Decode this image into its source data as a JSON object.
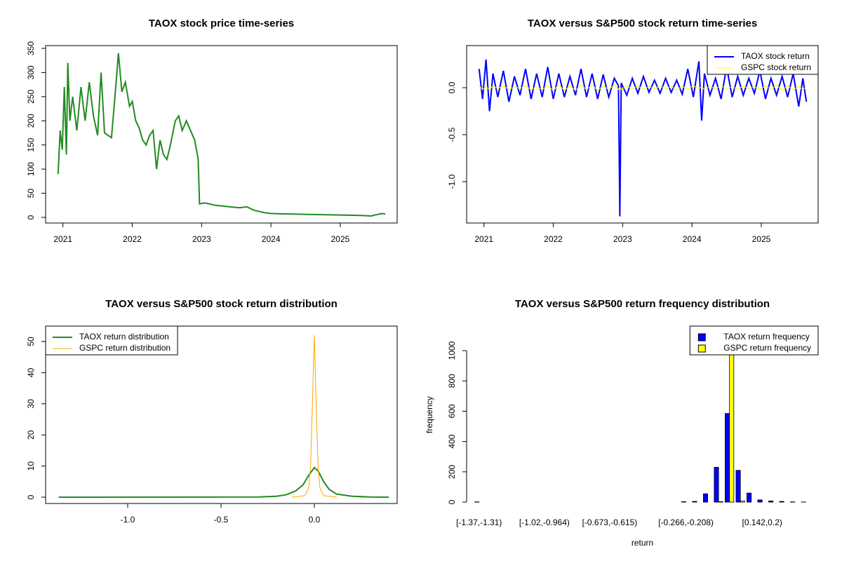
{
  "chart_data": [
    {
      "type": "line",
      "title": "TAOX stock price time-series",
      "x": [
        2020.93,
        2020.96,
        2020.99,
        2021.02,
        2021.05,
        2021.07,
        2021.1,
        2021.14,
        2021.2,
        2021.26,
        2021.32,
        2021.38,
        2021.44,
        2021.5,
        2021.55,
        2021.6,
        2021.7,
        2021.75,
        2021.8,
        2021.85,
        2021.9,
        2021.96,
        2022.0,
        2022.05,
        2022.1,
        2022.15,
        2022.2,
        2022.25,
        2022.3,
        2022.35,
        2022.4,
        2022.45,
        2022.5,
        2022.55,
        2022.62,
        2022.67,
        2022.72,
        2022.78,
        2022.84,
        2022.9,
        2022.95,
        2022.97,
        2023.05,
        2023.2,
        2023.4,
        2023.55,
        2023.65,
        2023.75,
        2023.9,
        2024.0,
        2024.3,
        2024.6,
        2025.0,
        2025.3,
        2025.45,
        2025.5,
        2025.6,
        2025.65
      ],
      "series": [
        {
          "name": "TAOX",
          "color": "#228b22",
          "values": [
            90,
            180,
            140,
            270,
            130,
            320,
            200,
            250,
            180,
            270,
            200,
            280,
            210,
            170,
            300,
            175,
            165,
            250,
            340,
            260,
            280,
            230,
            240,
            200,
            185,
            160,
            150,
            170,
            180,
            100,
            160,
            130,
            120,
            150,
            200,
            210,
            180,
            200,
            180,
            160,
            120,
            28,
            30,
            25,
            22,
            20,
            22,
            15,
            10,
            8,
            7,
            6,
            5,
            4,
            3,
            5,
            8,
            7
          ]
        }
      ],
      "xlim": [
        2020.75,
        2025.82
      ],
      "xticks": [
        2021,
        2022,
        2023,
        2024,
        2025
      ],
      "ylim": [
        -11.6,
        355.8
      ],
      "yticks": [
        0,
        50,
        100,
        150,
        200,
        250,
        300,
        350
      ]
    },
    {
      "type": "line",
      "title": "TAOX versus S&P500 stock return time-series",
      "x": [
        2020.93,
        2020.98,
        2021.03,
        2021.08,
        2021.13,
        2021.2,
        2021.28,
        2021.36,
        2021.44,
        2021.52,
        2021.6,
        2021.68,
        2021.76,
        2021.84,
        2021.92,
        2022.0,
        2022.08,
        2022.16,
        2022.24,
        2022.32,
        2022.4,
        2022.48,
        2022.56,
        2022.64,
        2022.72,
        2022.8,
        2022.88,
        2022.94,
        2022.96,
        2022.98,
        2023.06,
        2023.14,
        2023.22,
        2023.3,
        2023.38,
        2023.46,
        2023.54,
        2023.62,
        2023.7,
        2023.78,
        2023.86,
        2023.94,
        2024.02,
        2024.1,
        2024.14,
        2024.18,
        2024.26,
        2024.34,
        2024.42,
        2024.5,
        2024.58,
        2024.66,
        2024.74,
        2024.82,
        2024.9,
        2024.98,
        2025.06,
        2025.14,
        2025.22,
        2025.3,
        2025.38,
        2025.46,
        2025.54,
        2025.6,
        2025.65
      ],
      "series": [
        {
          "name": "TAOX stock return",
          "color": "#0000ff",
          "values": [
            0.2,
            -0.12,
            0.3,
            -0.25,
            0.15,
            -0.1,
            0.18,
            -0.15,
            0.12,
            -0.08,
            0.2,
            -0.12,
            0.15,
            -0.1,
            0.22,
            -0.12,
            0.15,
            -0.1,
            0.12,
            -0.08,
            0.2,
            -0.1,
            0.15,
            -0.12,
            0.14,
            -0.1,
            0.1,
            0.02,
            -1.37,
            0.05,
            -0.08,
            0.1,
            -0.06,
            0.12,
            -0.05,
            0.08,
            -0.06,
            0.1,
            -0.05,
            0.08,
            -0.07,
            0.2,
            -0.1,
            0.28,
            -0.35,
            0.15,
            -0.08,
            0.1,
            -0.12,
            0.22,
            -0.1,
            0.12,
            -0.08,
            0.1,
            -0.06,
            0.18,
            -0.12,
            0.1,
            -0.08,
            0.12,
            -0.1,
            0.15,
            -0.2,
            0.1,
            -0.15
          ]
        },
        {
          "name": "GSPC stock return",
          "color": "#ffff00",
          "values": [
            0.02,
            -0.02,
            0.01,
            -0.02,
            0.02,
            -0.01,
            0.02,
            -0.02,
            0.01,
            -0.01,
            0.02,
            -0.02,
            0.01,
            -0.02,
            0.02,
            -0.03,
            0.03,
            -0.03,
            0.02,
            -0.03,
            0.03,
            -0.02,
            0.03,
            -0.03,
            0.02,
            -0.02,
            0.03,
            -0.02,
            0.01,
            -0.02,
            0.02,
            -0.01,
            0.02,
            -0.02,
            0.01,
            -0.01,
            0.02,
            -0.01,
            0.01,
            -0.02,
            0.01,
            -0.01,
            0.02,
            -0.01,
            0.01,
            -0.02,
            0.01,
            -0.01,
            0.02,
            -0.01,
            0.01,
            -0.02,
            0.02,
            -0.01,
            0.01,
            -0.02,
            0.02,
            -0.02,
            0.03,
            -0.03,
            0.02,
            -0.02,
            0.01,
            -0.02,
            0.01
          ]
        }
      ],
      "xlim": [
        2020.75,
        2025.82
      ],
      "xticks": [
        2021,
        2022,
        2023,
        2024,
        2025
      ],
      "ylim": [
        -1.44,
        0.448
      ],
      "yticks": [
        {
          "value": 0,
          "label": "0.0"
        },
        -0.5,
        {
          "value": -1,
          "label": "-1.0"
        }
      ],
      "legend": "topright"
    },
    {
      "type": "line",
      "title": "TAOX versus S&P500 stock return distribution",
      "series": [
        {
          "name": "TAOX return distribution",
          "color": "#228b22",
          "x": [
            -1.37,
            -0.3,
            -0.2,
            -0.15,
            -0.1,
            -0.06,
            -0.03,
            0,
            0.02,
            0.05,
            0.08,
            0.12,
            0.2,
            0.3,
            0.4
          ],
          "values": [
            0,
            0.05,
            0.3,
            0.8,
            2,
            4,
            7,
            9.5,
            8.5,
            5,
            2.5,
            1,
            0.3,
            0.05,
            0
          ]
        },
        {
          "name": "GSPC return distribution",
          "color": "#ffa500",
          "x": [
            -0.12,
            -0.05,
            -0.03,
            -0.02,
            -0.01,
            0,
            0.01,
            0.02,
            0.03,
            0.05,
            0.12
          ],
          "values": [
            0,
            0.5,
            3,
            10,
            30,
            52,
            30,
            10,
            3,
            0.5,
            0
          ]
        }
      ],
      "xlim": [
        -1.44,
        0.444
      ],
      "xticks": [
        {
          "value": -1,
          "label": "-1.0"
        },
        -0.5,
        {
          "value": 0,
          "label": "0.0"
        }
      ],
      "ylim": [
        -2.03,
        54.95
      ],
      "yticks": [
        0,
        10,
        20,
        30,
        40,
        50
      ],
      "legend": "topleft"
    },
    {
      "type": "bar",
      "title": "TAOX versus S&P500 return frequency distribution",
      "xlabel": "return",
      "ylabel": "frequency",
      "categories": [
        "[-1.37,-1.31)",
        null,
        null,
        null,
        null,
        null,
        "[-1.02,-0.964)",
        null,
        null,
        null,
        null,
        null,
        "[-0.673,-0.615)",
        null,
        null,
        null,
        null,
        null,
        null,
        "[-0.266,-0.208)",
        null,
        null,
        null,
        null,
        null,
        null,
        "[0.142,0.2)",
        null,
        null,
        null,
        null
      ],
      "series": [
        {
          "name": "TAOX return frequency",
          "color": "#0000ff",
          "values": [
            2,
            0,
            0,
            0,
            0,
            0,
            0,
            0,
            0,
            0,
            0,
            0,
            0,
            0,
            0,
            0,
            0,
            0,
            0,
            3,
            5,
            55,
            230,
            585,
            210,
            60,
            15,
            8,
            5,
            2,
            1
          ]
        },
        {
          "name": "GSPC return frequency",
          "color": "#ffff00",
          "values": [
            0,
            0,
            0,
            0,
            0,
            0,
            0,
            0,
            0,
            0,
            0,
            0,
            0,
            0,
            0,
            0,
            0,
            0,
            0,
            0,
            0,
            0,
            3,
            1160,
            8,
            0,
            0,
            0,
            0,
            0,
            0
          ]
        }
      ],
      "ylim": [
        -9,
        1162
      ],
      "yticks": [
        0,
        200,
        400,
        600,
        800,
        1000
      ],
      "legend": "topright"
    }
  ]
}
